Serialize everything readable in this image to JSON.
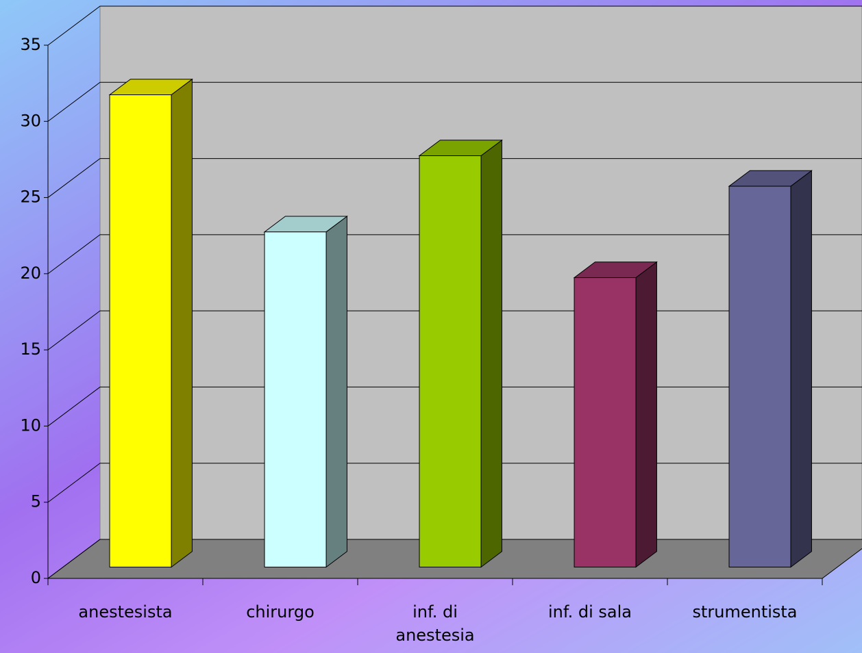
{
  "chart_data": {
    "type": "bar3d",
    "categories": [
      "anestesista",
      "chirurgo",
      "inf. di anestesia",
      "inf. di sala",
      "strumentista"
    ],
    "values": [
      31,
      22,
      27,
      19,
      25
    ],
    "colors": [
      "#ffff00",
      "#ccffff",
      "#99cc00",
      "#993366",
      "#666699"
    ],
    "ylim": [
      0,
      35
    ],
    "yticks": [
      0,
      5,
      10,
      15,
      20,
      25,
      30,
      35
    ],
    "grid": true
  }
}
